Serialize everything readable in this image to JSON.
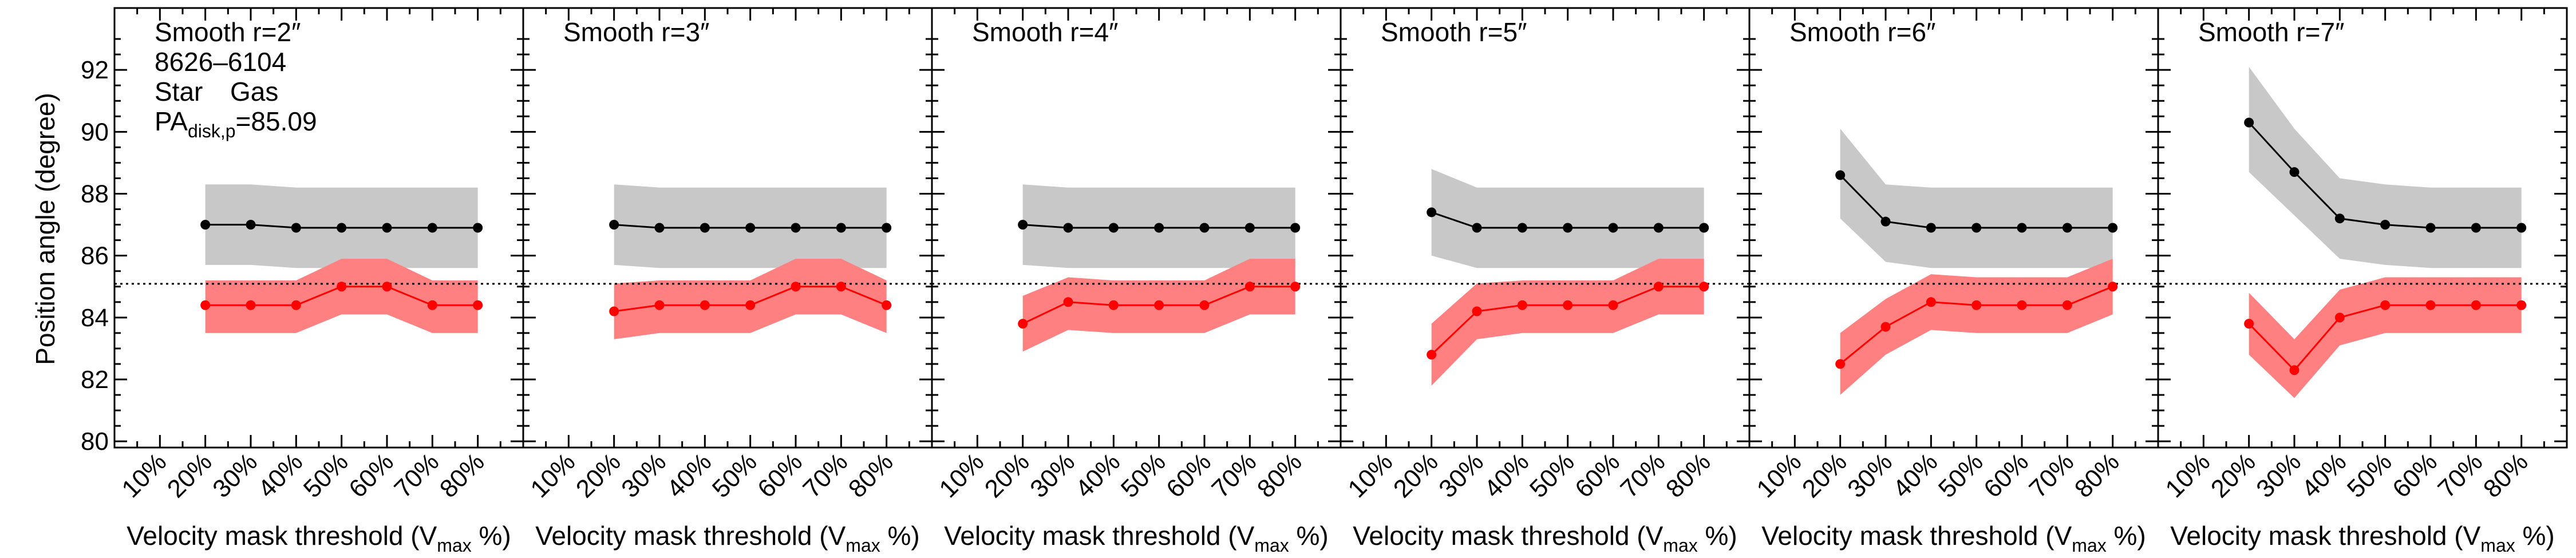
{
  "figure": {
    "ylabel": "Position angle (degree)",
    "xlabel_main": "Velocity mask threshold (V",
    "xlabel_sub": "max",
    "xlabel_end": " %)",
    "galaxy_id": "8626–6104",
    "legend_star": "Star",
    "legend_gas": "Gas",
    "pa_prefix": "PA",
    "pa_sub": "disk,p",
    "pa_value": "=85.09"
  },
  "colors": {
    "star_line": "#000000",
    "star_band": "#c8c8c8",
    "gas_line": "#ff0000",
    "gas_band": "#ff8080",
    "reference_line": "#000000"
  },
  "chart_data": {
    "type": "line",
    "x_categories": [
      "10%",
      "20%",
      "30%",
      "40%",
      "50%",
      "60%",
      "70%",
      "80%"
    ],
    "x_values": [
      10,
      20,
      30,
      40,
      50,
      60,
      70,
      80
    ],
    "xlim": [
      0,
      90
    ],
    "ylim": [
      79.8,
      94
    ],
    "y_ticks": [
      80,
      82,
      84,
      86,
      88,
      90,
      92
    ],
    "reference_y": 85.09,
    "panels": [
      {
        "label": "Smooth r=2″",
        "star": {
          "x": [
            20,
            30,
            40,
            50,
            60,
            70,
            80
          ],
          "y": [
            87.0,
            87.0,
            86.9,
            86.9,
            86.9,
            86.9,
            86.9
          ],
          "upper": [
            88.3,
            88.3,
            88.2,
            88.2,
            88.2,
            88.2,
            88.2
          ],
          "lower": [
            85.7,
            85.7,
            85.6,
            85.6,
            85.6,
            85.6,
            85.6
          ]
        },
        "gas": {
          "x": [
            20,
            30,
            40,
            50,
            60,
            70,
            80
          ],
          "y": [
            84.4,
            84.4,
            84.4,
            85.0,
            85.0,
            84.4,
            84.4
          ],
          "upper": [
            85.2,
            85.2,
            85.2,
            85.9,
            85.9,
            85.2,
            85.2
          ],
          "lower": [
            83.5,
            83.5,
            83.5,
            84.1,
            84.1,
            83.5,
            83.5
          ]
        }
      },
      {
        "label": "Smooth r=3″",
        "star": {
          "x": [
            20,
            30,
            40,
            50,
            60,
            70,
            80
          ],
          "y": [
            87.0,
            86.9,
            86.9,
            86.9,
            86.9,
            86.9,
            86.9
          ],
          "upper": [
            88.3,
            88.2,
            88.2,
            88.2,
            88.2,
            88.2,
            88.2
          ],
          "lower": [
            85.7,
            85.6,
            85.6,
            85.6,
            85.6,
            85.6,
            85.6
          ]
        },
        "gas": {
          "x": [
            20,
            30,
            40,
            50,
            60,
            70,
            80
          ],
          "y": [
            84.2,
            84.4,
            84.4,
            84.4,
            85.0,
            85.0,
            84.4
          ],
          "upper": [
            85.1,
            85.2,
            85.2,
            85.2,
            85.9,
            85.9,
            85.2
          ],
          "lower": [
            83.3,
            83.5,
            83.5,
            83.5,
            84.1,
            84.1,
            83.5
          ]
        }
      },
      {
        "label": "Smooth r=4″",
        "star": {
          "x": [
            20,
            30,
            40,
            50,
            60,
            70,
            80
          ],
          "y": [
            87.0,
            86.9,
            86.9,
            86.9,
            86.9,
            86.9,
            86.9
          ],
          "upper": [
            88.3,
            88.2,
            88.2,
            88.2,
            88.2,
            88.2,
            88.2
          ],
          "lower": [
            85.7,
            85.6,
            85.6,
            85.6,
            85.6,
            85.6,
            85.6
          ]
        },
        "gas": {
          "x": [
            20,
            30,
            40,
            50,
            60,
            70,
            80
          ],
          "y": [
            83.8,
            84.5,
            84.4,
            84.4,
            84.4,
            85.0,
            85.0
          ],
          "upper": [
            84.7,
            85.3,
            85.2,
            85.2,
            85.2,
            85.9,
            85.9
          ],
          "lower": [
            82.9,
            83.6,
            83.5,
            83.5,
            83.5,
            84.1,
            84.1
          ]
        }
      },
      {
        "label": "Smooth r=5″",
        "star": {
          "x": [
            20,
            30,
            40,
            50,
            60,
            70,
            80
          ],
          "y": [
            87.4,
            86.9,
            86.9,
            86.9,
            86.9,
            86.9,
            86.9
          ],
          "upper": [
            88.8,
            88.2,
            88.2,
            88.2,
            88.2,
            88.2,
            88.2
          ],
          "lower": [
            86.0,
            85.6,
            85.6,
            85.6,
            85.6,
            85.6,
            85.6
          ]
        },
        "gas": {
          "x": [
            20,
            30,
            40,
            50,
            60,
            70,
            80
          ],
          "y": [
            82.8,
            84.2,
            84.4,
            84.4,
            84.4,
            85.0,
            85.0
          ],
          "upper": [
            83.8,
            85.1,
            85.2,
            85.2,
            85.2,
            85.9,
            85.9
          ],
          "lower": [
            81.8,
            83.3,
            83.5,
            83.5,
            83.5,
            84.1,
            84.1
          ]
        }
      },
      {
        "label": "Smooth r=6″",
        "star": {
          "x": [
            20,
            30,
            40,
            50,
            60,
            70,
            80
          ],
          "y": [
            88.6,
            87.1,
            86.9,
            86.9,
            86.9,
            86.9,
            86.9
          ],
          "upper": [
            90.1,
            88.3,
            88.2,
            88.2,
            88.2,
            88.2,
            88.2
          ],
          "lower": [
            87.2,
            85.8,
            85.6,
            85.6,
            85.6,
            85.6,
            85.6
          ]
        },
        "gas": {
          "x": [
            20,
            30,
            40,
            50,
            60,
            70,
            80
          ],
          "y": [
            82.5,
            83.7,
            84.5,
            84.4,
            84.4,
            84.4,
            85.0
          ],
          "upper": [
            83.5,
            84.6,
            85.4,
            85.3,
            85.3,
            85.3,
            85.9
          ],
          "lower": [
            81.5,
            82.8,
            83.6,
            83.5,
            83.5,
            83.5,
            84.1
          ]
        }
      },
      {
        "label": "Smooth r=7″",
        "star": {
          "x": [
            20,
            30,
            40,
            50,
            60,
            70,
            80
          ],
          "y": [
            90.3,
            88.7,
            87.2,
            87.0,
            86.9,
            86.9,
            86.9
          ],
          "upper": [
            92.1,
            90.1,
            88.5,
            88.3,
            88.2,
            88.2,
            88.2
          ],
          "lower": [
            88.7,
            87.3,
            85.9,
            85.7,
            85.6,
            85.6,
            85.6
          ]
        },
        "gas": {
          "x": [
            20,
            30,
            40,
            50,
            60,
            70,
            80
          ],
          "y": [
            83.8,
            82.3,
            84.0,
            84.4,
            84.4,
            84.4,
            84.4
          ],
          "upper": [
            84.8,
            83.3,
            84.9,
            85.3,
            85.3,
            85.3,
            85.3
          ],
          "lower": [
            82.8,
            81.4,
            83.1,
            83.5,
            83.5,
            83.5,
            83.5
          ]
        }
      }
    ]
  }
}
